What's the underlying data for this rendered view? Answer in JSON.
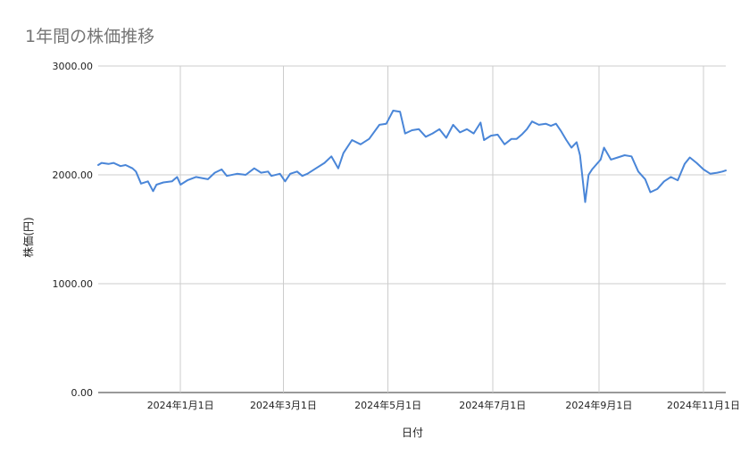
{
  "chart_data": {
    "type": "line",
    "title": "1年間の株価推移",
    "xlabel": "日付",
    "ylabel": "株価(円)",
    "ylim": [
      0,
      3000
    ],
    "y_ticks": [
      "0.00",
      "1000.00",
      "2000.00",
      "3000.00"
    ],
    "y_tick_values": [
      0,
      1000,
      2000,
      3000
    ],
    "x_range": [
      "2023-11-14",
      "2024-11-14"
    ],
    "x_ticks": [
      {
        "date": "2024-01-01",
        "label": "2024年1月1日"
      },
      {
        "date": "2024-03-01",
        "label": "2024年3月1日"
      },
      {
        "date": "2024-05-01",
        "label": "2024年5月1日"
      },
      {
        "date": "2024-07-01",
        "label": "2024年7月1日"
      },
      {
        "date": "2024-09-01",
        "label": "2024年9月1日"
      },
      {
        "date": "2024-11-01",
        "label": "2024年11月1日"
      }
    ],
    "grid": true,
    "line_color": "#4a86d8",
    "series": [
      {
        "points": [
          [
            "2023-11-14",
            2090
          ],
          [
            "2023-11-16",
            2110
          ],
          [
            "2023-11-20",
            2100
          ],
          [
            "2023-11-23",
            2110
          ],
          [
            "2023-11-27",
            2080
          ],
          [
            "2023-11-30",
            2090
          ],
          [
            "2023-12-04",
            2060
          ],
          [
            "2023-12-06",
            2030
          ],
          [
            "2023-12-09",
            1920
          ],
          [
            "2023-12-13",
            1940
          ],
          [
            "2023-12-16",
            1850
          ],
          [
            "2023-12-18",
            1910
          ],
          [
            "2023-12-22",
            1930
          ],
          [
            "2023-12-27",
            1940
          ],
          [
            "2023-12-30",
            1980
          ],
          [
            "2024-01-01",
            1910
          ],
          [
            "2024-01-05",
            1950
          ],
          [
            "2024-01-10",
            1980
          ],
          [
            "2024-01-17",
            1960
          ],
          [
            "2024-01-21",
            2020
          ],
          [
            "2024-01-25",
            2050
          ],
          [
            "2024-01-28",
            1990
          ],
          [
            "2024-02-03",
            2010
          ],
          [
            "2024-02-08",
            2000
          ],
          [
            "2024-02-13",
            2060
          ],
          [
            "2024-02-17",
            2020
          ],
          [
            "2024-02-21",
            2030
          ],
          [
            "2024-02-23",
            1990
          ],
          [
            "2024-02-28",
            2010
          ],
          [
            "2024-03-02",
            1940
          ],
          [
            "2024-03-05",
            2010
          ],
          [
            "2024-03-09",
            2030
          ],
          [
            "2024-03-12",
            1990
          ],
          [
            "2024-03-15",
            2010
          ],
          [
            "2024-03-20",
            2060
          ],
          [
            "2024-03-25",
            2110
          ],
          [
            "2024-03-29",
            2170
          ],
          [
            "2024-04-02",
            2060
          ],
          [
            "2024-04-05",
            2200
          ],
          [
            "2024-04-10",
            2320
          ],
          [
            "2024-04-15",
            2280
          ],
          [
            "2024-04-20",
            2330
          ],
          [
            "2024-04-26",
            2460
          ],
          [
            "2024-04-30",
            2470
          ],
          [
            "2024-05-04",
            2590
          ],
          [
            "2024-05-08",
            2580
          ],
          [
            "2024-05-11",
            2380
          ],
          [
            "2024-05-15",
            2410
          ],
          [
            "2024-05-19",
            2420
          ],
          [
            "2024-05-23",
            2350
          ],
          [
            "2024-05-27",
            2380
          ],
          [
            "2024-05-31",
            2420
          ],
          [
            "2024-06-04",
            2340
          ],
          [
            "2024-06-08",
            2460
          ],
          [
            "2024-06-12",
            2390
          ],
          [
            "2024-06-16",
            2420
          ],
          [
            "2024-06-20",
            2380
          ],
          [
            "2024-06-24",
            2480
          ],
          [
            "2024-06-26",
            2320
          ],
          [
            "2024-06-30",
            2360
          ],
          [
            "2024-07-04",
            2370
          ],
          [
            "2024-07-08",
            2280
          ],
          [
            "2024-07-12",
            2330
          ],
          [
            "2024-07-15",
            2330
          ],
          [
            "2024-07-18",
            2370
          ],
          [
            "2024-07-21",
            2420
          ],
          [
            "2024-07-24",
            2490
          ],
          [
            "2024-07-28",
            2460
          ],
          [
            "2024-08-01",
            2470
          ],
          [
            "2024-08-04",
            2450
          ],
          [
            "2024-08-07",
            2470
          ],
          [
            "2024-08-10",
            2400
          ],
          [
            "2024-08-13",
            2320
          ],
          [
            "2024-08-16",
            2250
          ],
          [
            "2024-08-19",
            2300
          ],
          [
            "2024-08-21",
            2180
          ],
          [
            "2024-08-24",
            1750
          ],
          [
            "2024-08-26",
            2000
          ],
          [
            "2024-08-28",
            2050
          ],
          [
            "2024-09-02",
            2140
          ],
          [
            "2024-09-04",
            2250
          ],
          [
            "2024-09-08",
            2140
          ],
          [
            "2024-09-12",
            2160
          ],
          [
            "2024-09-16",
            2180
          ],
          [
            "2024-09-20",
            2170
          ],
          [
            "2024-09-24",
            2030
          ],
          [
            "2024-09-28",
            1960
          ],
          [
            "2024-10-01",
            1840
          ],
          [
            "2024-10-05",
            1870
          ],
          [
            "2024-10-09",
            1940
          ],
          [
            "2024-10-13",
            1980
          ],
          [
            "2024-10-17",
            1950
          ],
          [
            "2024-10-21",
            2100
          ],
          [
            "2024-10-24",
            2160
          ],
          [
            "2024-10-28",
            2110
          ],
          [
            "2024-11-01",
            2050
          ],
          [
            "2024-11-05",
            2010
          ],
          [
            "2024-11-09",
            2020
          ],
          [
            "2024-11-12",
            2030
          ],
          [
            "2024-11-14",
            2040
          ]
        ]
      }
    ]
  }
}
